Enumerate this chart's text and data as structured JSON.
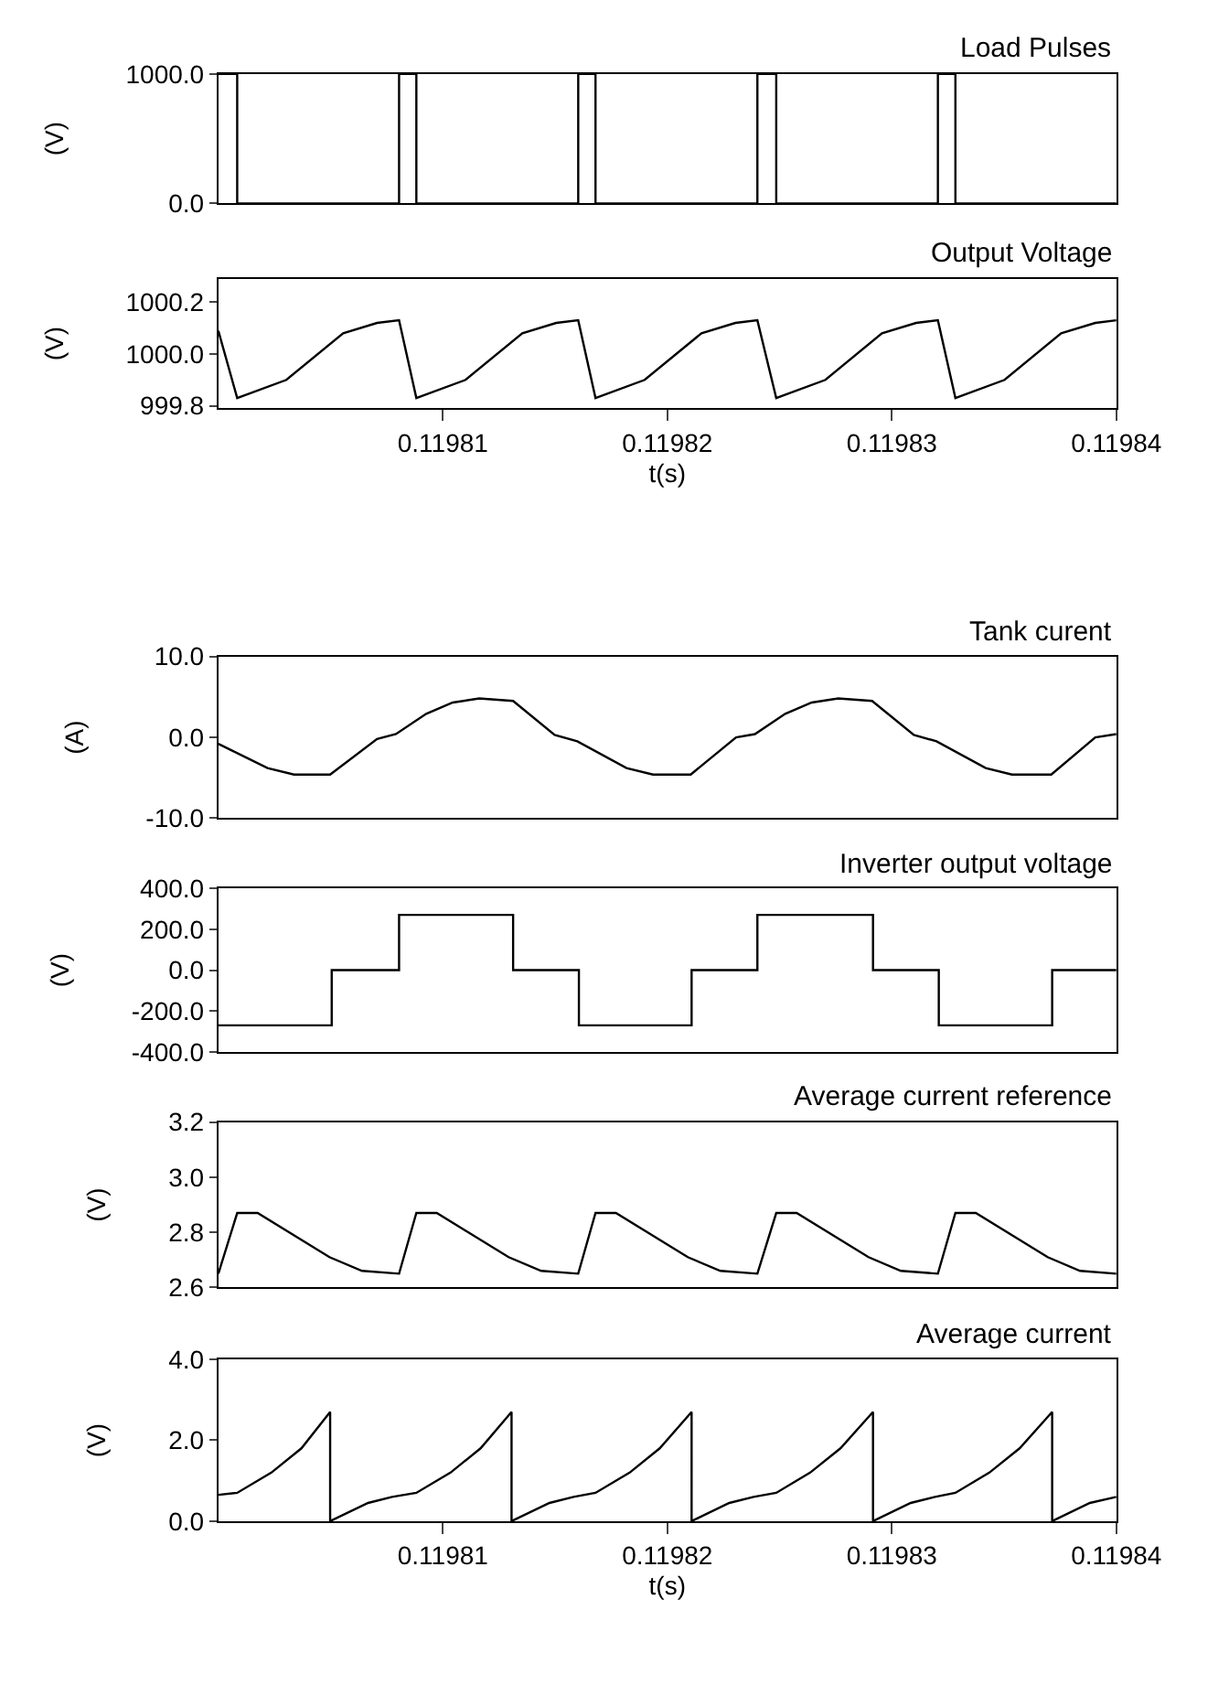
{
  "chart_data": [
    {
      "type": "step",
      "title": "Load Pulses",
      "ylabel": "(V)",
      "color": "#000000",
      "tick_labels": "y",
      "xlim": [
        0.1198,
        0.11984
      ],
      "ylim": [
        0,
        1000
      ],
      "yticks": [
        {
          "value": 0,
          "label": "0.0"
        },
        {
          "value": 1000,
          "label": "1000.0"
        }
      ],
      "x": [
        0.1198,
        0.11980084,
        0.11980805,
        0.11980882,
        0.11981603,
        0.1198168,
        0.11982401,
        0.11982485,
        0.11983205,
        0.11983283,
        0.11984
      ],
      "values": [
        1000,
        0,
        1000,
        0,
        1000,
        0,
        1000,
        0,
        1000,
        0,
        0
      ]
    },
    {
      "type": "line",
      "title": "Output Voltage",
      "ylabel": "(V)",
      "xlabel": "t(s)",
      "color": "#000000",
      "xlim": [
        0.1198,
        0.11984
      ],
      "ylim": [
        999.79,
        1000.29
      ],
      "xticks": [
        0.11981,
        0.11982,
        0.11983,
        0.11984
      ],
      "yticks": [
        999.8,
        {
          "value": 1000,
          "label": "1000.0"
        },
        1000.2
      ],
      "x": [
        0.1198,
        0.11980084,
        0.11980303,
        0.11980556,
        0.11980707,
        0.11980805,
        0.11980882,
        0.11981101,
        0.11981354,
        0.11981505,
        0.11981603,
        0.1198168,
        0.11981899,
        0.11982152,
        0.11982303,
        0.11982401,
        0.11982485,
        0.11982704,
        0.11982956,
        0.11983108,
        0.11983205,
        0.11983283,
        0.11983502,
        0.11983754,
        0.11983906,
        0.11984
      ],
      "values": [
        1000.09,
        999.83,
        999.9,
        1000.08,
        1000.12,
        1000.13,
        999.83,
        999.9,
        1000.08,
        1000.12,
        1000.13,
        999.83,
        999.9,
        1000.08,
        1000.12,
        1000.13,
        999.83,
        999.9,
        1000.08,
        1000.12,
        1000.13,
        999.83,
        999.9,
        1000.08,
        1000.12,
        1000.13
      ]
    },
    {
      "type": "line",
      "title": "Tank curent",
      "ylabel": "(A)",
      "color": "#000000",
      "tick_labels": "y",
      "xlim": [
        0.1198,
        0.11984
      ],
      "ylim": [
        -10,
        10
      ],
      "yticks": [
        {
          "value": -10,
          "label": "-10.0"
        },
        {
          "value": 0,
          "label": "0.0"
        },
        {
          "value": 10,
          "label": "10.0"
        }
      ],
      "x": [
        0.1198,
        0.11980219,
        0.11980337,
        0.11980498,
        0.11980707,
        0.11980791,
        0.11980926,
        0.11981044,
        0.11981162,
        0.11981313,
        0.11981498,
        0.11981599,
        0.11981818,
        0.11981936,
        0.11982104,
        0.11982306,
        0.1198239,
        0.11982525,
        0.11982643,
        0.11982761,
        0.11982912,
        0.11983098,
        0.11983199,
        0.11983418,
        0.11983535,
        0.1198371,
        0.11983906,
        0.11984
      ],
      "values": [
        -0.8,
        -3.8,
        -4.6,
        -4.6,
        -0.2,
        0.4,
        2.9,
        4.3,
        4.8,
        4.5,
        0.3,
        -0.5,
        -3.8,
        -4.6,
        -4.6,
        0,
        0.4,
        2.9,
        4.3,
        4.8,
        4.5,
        0.3,
        -0.5,
        -3.8,
        -4.6,
        -4.6,
        0,
        0.4
      ]
    },
    {
      "type": "step",
      "title": "Inverter output voltage",
      "ylabel": "(V)",
      "color": "#000000",
      "tick_labels": "y",
      "xlim": [
        0.1198,
        0.11984
      ],
      "ylim": [
        -400,
        400
      ],
      "yticks": [
        {
          "value": -400,
          "label": "-400.0"
        },
        {
          "value": -200,
          "label": "-200.0"
        },
        {
          "value": 0,
          "label": "0.0"
        },
        {
          "value": 200,
          "label": "200.0"
        },
        {
          "value": 400,
          "label": "400.0"
        }
      ],
      "x": [
        0.1198,
        0.11980505,
        0.11980805,
        0.11981313,
        0.11981606,
        0.11982108,
        0.11982401,
        0.11982916,
        0.11983209,
        0.11983714,
        0.11984
      ],
      "values": [
        -270,
        0,
        270,
        0,
        -270,
        0,
        270,
        0,
        -270,
        0,
        0
      ]
    },
    {
      "type": "line",
      "title": "Average current reference",
      "ylabel": "(V)",
      "color": "#000000",
      "tick_labels": "y",
      "xlim": [
        0.1198,
        0.11984
      ],
      "ylim": [
        2.6,
        3.2
      ],
      "yticks": [
        2.6,
        2.8,
        {
          "value": 3,
          "label": "3.0"
        },
        3.2
      ],
      "x": [
        0.1198,
        0.11980084,
        0.11980175,
        0.11980495,
        0.1198064,
        0.11980805,
        0.11980882,
        0.11980973,
        0.11981293,
        0.11981438,
        0.11981603,
        0.1198168,
        0.11981771,
        0.11982091,
        0.11982236,
        0.11982401,
        0.11982485,
        0.11982576,
        0.11982896,
        0.1198304,
        0.11983205,
        0.11983283,
        0.11983374,
        0.11983694,
        0.11983838,
        0.11984
      ],
      "values": [
        2.65,
        2.87,
        2.87,
        2.71,
        2.66,
        2.65,
        2.87,
        2.87,
        2.71,
        2.66,
        2.65,
        2.87,
        2.87,
        2.71,
        2.66,
        2.65,
        2.87,
        2.87,
        2.71,
        2.66,
        2.65,
        2.87,
        2.87,
        2.71,
        2.66,
        2.65
      ]
    },
    {
      "type": "line",
      "title": "Average current",
      "ylabel": "(V)",
      "xlabel": "t(s)",
      "color": "#000000",
      "xlim": [
        0.1198,
        0.11984
      ],
      "ylim": [
        0,
        4
      ],
      "xticks": [
        0.11981,
        0.11982,
        0.11983,
        0.11984
      ],
      "yticks": [
        {
          "value": 0,
          "label": "0.0"
        },
        {
          "value": 2,
          "label": "2.0"
        },
        {
          "value": 4,
          "label": "4.0"
        }
      ],
      "x": [
        0.1198,
        0.11980084,
        0.11980236,
        0.1198037,
        0.11980498,
        0.11980498,
        0.11980667,
        0.11980774,
        0.11980882,
        0.11981034,
        0.11981168,
        0.11981306,
        0.11981306,
        0.11981475,
        0.11981582,
        0.1198168,
        0.11981832,
        0.11981966,
        0.11982108,
        0.11982108,
        0.11982276,
        0.11982384,
        0.11982485,
        0.11982636,
        0.11982771,
        0.11982916,
        0.11982916,
        0.11983084,
        0.11983192,
        0.11983283,
        0.11983434,
        0.11983569,
        0.11983714,
        0.11983714,
        0.11983882,
        0.11984
      ],
      "values": [
        0.65,
        0.7,
        1.2,
        1.8,
        2.7,
        0,
        0.45,
        0.6,
        0.7,
        1.2,
        1.8,
        2.7,
        0,
        0.45,
        0.6,
        0.7,
        1.2,
        1.8,
        2.7,
        0,
        0.45,
        0.6,
        0.7,
        1.2,
        1.8,
        2.7,
        0,
        0.45,
        0.6,
        0.7,
        1.2,
        1.8,
        2.7,
        0,
        0.45,
        0.6
      ]
    }
  ]
}
